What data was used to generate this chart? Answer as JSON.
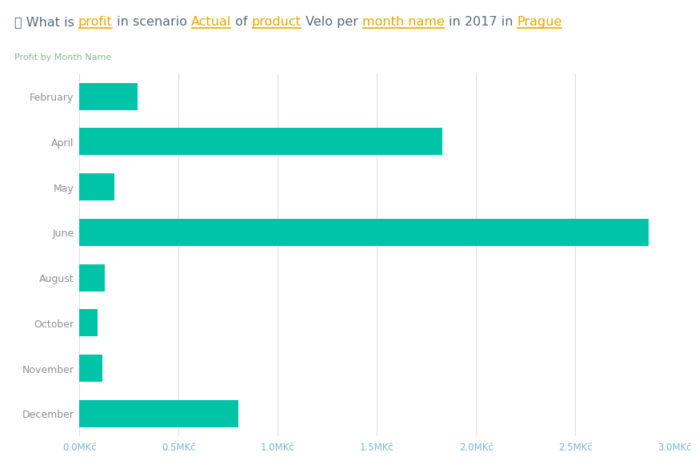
{
  "title_parts": [
    {
      "text": "⍉ What is ",
      "color": "#5a6a7a",
      "underline": false
    },
    {
      "text": "profit",
      "color": "#e8a800",
      "underline": true
    },
    {
      "text": " in scenario ",
      "color": "#5a6a7a",
      "underline": false
    },
    {
      "text": "Actual",
      "color": "#e8a800",
      "underline": true
    },
    {
      "text": " of ",
      "color": "#5a6a7a",
      "underline": false
    },
    {
      "text": "product",
      "color": "#e8a800",
      "underline": true
    },
    {
      "text": " Velo per ",
      "color": "#5a6a7a",
      "underline": false
    },
    {
      "text": "month name",
      "color": "#e8a800",
      "underline": true
    },
    {
      "text": " in 2017 in ",
      "color": "#5a6a7a",
      "underline": false
    },
    {
      "text": "Prague",
      "color": "#e8a800",
      "underline": true
    }
  ],
  "subtitle": "Profit by Month Name",
  "categories": [
    "February",
    "April",
    "May",
    "June",
    "August",
    "October",
    "November",
    "December"
  ],
  "values": [
    0.295,
    1.83,
    0.175,
    2.87,
    0.13,
    0.09,
    0.115,
    0.8
  ],
  "bar_color": "#00c4a8",
  "bar_height": 0.6,
  "xlim_max": 3.0,
  "xtick_values": [
    0.0,
    0.5,
    1.0,
    1.5,
    2.0,
    2.5,
    3.0
  ],
  "xtick_labels": [
    "0.0MKč",
    "0.5MKč",
    "1.0MKč",
    "1.5MKč",
    "2.0MKč",
    "2.5MKč",
    "3.0MKč"
  ],
  "background_color": "#ffffff",
  "grid_color": "#e0e0e0",
  "tick_color": "#7ab8d4",
  "ytick_color": "#909090",
  "subtitle_color": "#8ab890",
  "title_fontsize": 11.5,
  "subtitle_fontsize": 8.0,
  "axis_tick_fontsize": 8.5,
  "ytick_fontsize": 9.0
}
